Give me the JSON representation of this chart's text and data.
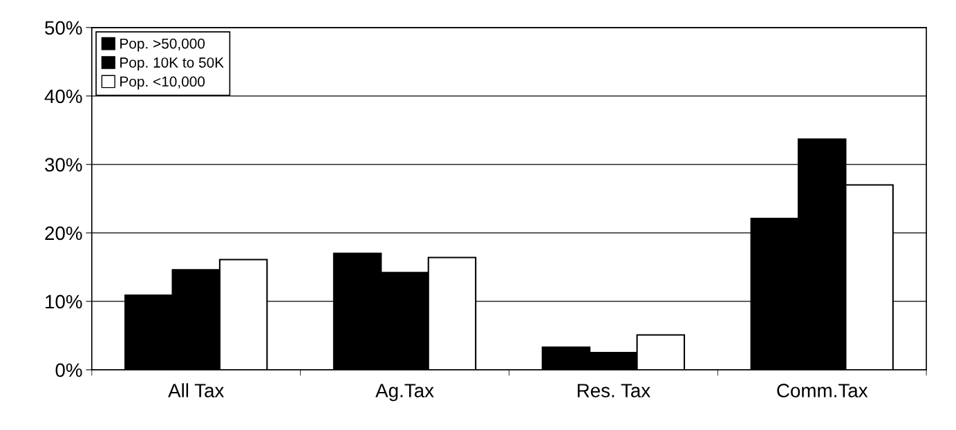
{
  "chart_data": {
    "type": "bar",
    "categories": [
      "All Tax",
      "Ag.Tax",
      "Res. Tax",
      "Comm.Tax"
    ],
    "series": [
      {
        "name": "Pop. >50,000",
        "color": "#000000",
        "values": [
          10.9,
          17.0,
          3.3,
          22.1
        ]
      },
      {
        "name": "Pop. 10K to 50K",
        "color": "#000000",
        "values": [
          14.6,
          14.2,
          2.5,
          33.7
        ]
      },
      {
        "name": "Pop. <10,000",
        "color": "#ffffff",
        "values": [
          16.1,
          16.4,
          5.1,
          27.0
        ]
      }
    ],
    "ylim": [
      0,
      50
    ],
    "yticks": [
      {
        "value": 0,
        "label": "0%"
      },
      {
        "value": 10,
        "label": "10%"
      },
      {
        "value": 20,
        "label": "20%"
      },
      {
        "value": 30,
        "label": "30%"
      },
      {
        "value": 40,
        "label": "40%"
      },
      {
        "value": 50,
        "label": "50%"
      }
    ],
    "grid": "y",
    "legend": "top left"
  }
}
